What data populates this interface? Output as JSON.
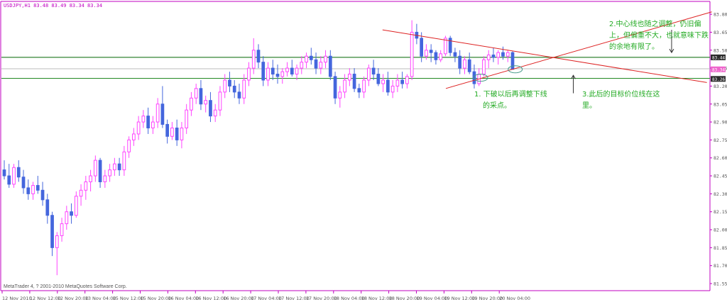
{
  "header": {
    "symbol_info": "USDJPY,H1  83.48 83.49 83.34 83.34",
    "footer": "MetaTrader 4, ? 2001-2010 MetaQuotes Software Corp."
  },
  "colors": {
    "background": "#ffffff",
    "axis": "#c000c0",
    "bull_candle": "#ff44ff",
    "bear_candle": "#4466dd",
    "hline_main": "#006600",
    "hline_lower": "#228822",
    "trendline": "#dd2222",
    "annotation_text": "#22aa22",
    "arrow": "#333333",
    "price_label_bg_dark": "#2b2b2b",
    "price_label_bg_pink": "#ee66cc"
  },
  "annotations": {
    "note2_line1": "2.中心线也随之调整，仍旧偏",
    "note2_line2": "上，但偏重不大，也就意味下跌",
    "note2_line3": "的余地有限了。",
    "note1_line1": "1. 下破以后再调整下线",
    "note1_line2": "的采点。",
    "note3_line1": "3.此后的目标价位线在这",
    "note3_line2": "里。"
  },
  "chart_data": {
    "type": "candlestick",
    "title": "USDJPY,H1",
    "ylim": [
      81.55,
      83.86
    ],
    "yticks": [
      "83.80",
      "83.65",
      "83.50",
      "83.35",
      "83.20",
      "83.05",
      "82.90",
      "82.75",
      "82.60",
      "82.45",
      "82.30",
      "82.15",
      "82.00",
      "81.85",
      "81.70",
      "81.55"
    ],
    "xticks": [
      "12 Nov 2010",
      "12 Nov 12:00",
      "12 Nov 20:00",
      "13 Nov 04:00",
      "15 Nov 12:00",
      "15 Nov 20:00",
      "16 Nov 04:00",
      "16 Nov 12:00",
      "16 Nov 20:00",
      "17 Nov 04:00",
      "17 Nov 12:00",
      "17 Nov 20:00",
      "18 Nov 04:00",
      "18 Nov 12:00",
      "18 Nov 20:00",
      "19 Nov 04:00",
      "19 Nov 12:00",
      "19 Nov 20:00",
      "20 Nov 04:00"
    ],
    "price_labels": [
      {
        "value": 83.44,
        "text": "83.44",
        "style": "dark"
      },
      {
        "value": 83.34,
        "text": "83.34",
        "style": "pink"
      },
      {
        "value": 83.26,
        "text": "83.26",
        "style": "dark"
      }
    ],
    "hlines": [
      {
        "value": 83.44,
        "color": "#006600"
      },
      {
        "value": 83.345,
        "color": "#bbbbbb"
      },
      {
        "value": 83.265,
        "color": "#228822"
      }
    ],
    "trendlines": [
      {
        "x1": 0.5262,
        "y1": 83.67,
        "x2": 0.9723,
        "y2": 83.23
      },
      {
        "x1": 0.6133,
        "y1": 83.18,
        "x2": 0.9791,
        "y2": 83.82
      }
    ],
    "markers": [
      {
        "type": "ellipse",
        "cx": 0.6611,
        "y": 83.27
      },
      {
        "type": "ellipse",
        "cx": 0.7087,
        "y": 83.34
      },
      {
        "type": "arrow-down",
        "x": 0.9238,
        "y1": 83.67,
        "y2": 83.48
      },
      {
        "type": "arrow-up",
        "x": 0.7886,
        "y1": 83.14,
        "y2": 83.29
      }
    ],
    "candles": [
      [
        82.5,
        82.58,
        82.42,
        82.45
      ],
      [
        82.45,
        82.55,
        82.35,
        82.38
      ],
      [
        82.38,
        82.55,
        82.35,
        82.52
      ],
      [
        82.52,
        82.58,
        82.4,
        82.44
      ],
      [
        82.44,
        82.5,
        82.3,
        82.35
      ],
      [
        82.35,
        82.42,
        82.25,
        82.3
      ],
      [
        82.3,
        82.4,
        82.25,
        82.37
      ],
      [
        82.37,
        82.45,
        82.3,
        82.33
      ],
      [
        82.33,
        82.4,
        82.2,
        82.25
      ],
      [
        82.25,
        82.3,
        82.05,
        82.12
      ],
      [
        82.12,
        82.15,
        81.78,
        81.85
      ],
      [
        81.85,
        81.98,
        81.62,
        81.95
      ],
      [
        81.95,
        82.1,
        81.9,
        82.05
      ],
      [
        82.05,
        82.2,
        82.0,
        82.15
      ],
      [
        82.15,
        82.22,
        82.05,
        82.12
      ],
      [
        82.12,
        82.32,
        82.1,
        82.28
      ],
      [
        82.28,
        82.38,
        82.2,
        82.33
      ],
      [
        82.33,
        82.45,
        82.25,
        82.4
      ],
      [
        82.4,
        82.5,
        82.32,
        82.45
      ],
      [
        82.45,
        82.62,
        82.4,
        82.58
      ],
      [
        82.58,
        82.6,
        82.35,
        82.4
      ],
      [
        82.4,
        82.5,
        82.35,
        82.45
      ],
      [
        82.45,
        82.55,
        82.4,
        82.5
      ],
      [
        82.5,
        82.6,
        82.45,
        82.55
      ],
      [
        82.55,
        82.6,
        82.45,
        82.5
      ],
      [
        82.5,
        82.7,
        82.45,
        82.65
      ],
      [
        82.65,
        82.78,
        82.6,
        82.75
      ],
      [
        82.75,
        82.85,
        82.7,
        82.8
      ],
      [
        82.8,
        82.95,
        82.75,
        82.9
      ],
      [
        82.9,
        83.0,
        82.85,
        82.95
      ],
      [
        82.95,
        83.02,
        82.8,
        82.85
      ],
      [
        82.85,
        82.95,
        82.8,
        82.9
      ],
      [
        82.9,
        83.1,
        82.85,
        83.05
      ],
      [
        83.05,
        83.2,
        82.85,
        82.88
      ],
      [
        82.88,
        82.92,
        82.72,
        82.78
      ],
      [
        82.78,
        82.9,
        82.75,
        82.85
      ],
      [
        82.85,
        82.92,
        82.7,
        82.75
      ],
      [
        82.75,
        82.9,
        82.68,
        82.85
      ],
      [
        82.85,
        83.05,
        82.8,
        83.0
      ],
      [
        83.0,
        83.15,
        82.95,
        83.1
      ],
      [
        83.1,
        83.22,
        83.05,
        83.18
      ],
      [
        83.18,
        83.25,
        83.0,
        83.05
      ],
      [
        83.05,
        83.12,
        82.98,
        83.08
      ],
      [
        83.08,
        83.15,
        82.9,
        82.95
      ],
      [
        82.95,
        83.05,
        82.9,
        83.0
      ],
      [
        83.0,
        83.2,
        82.95,
        83.15
      ],
      [
        83.15,
        83.3,
        83.1,
        83.25
      ],
      [
        83.25,
        83.32,
        83.15,
        83.2
      ],
      [
        83.2,
        83.25,
        83.1,
        83.15
      ],
      [
        83.15,
        83.22,
        83.05,
        83.1
      ],
      [
        83.1,
        83.3,
        83.05,
        83.25
      ],
      [
        83.25,
        83.4,
        83.2,
        83.35
      ],
      [
        83.35,
        83.6,
        83.3,
        83.5
      ],
      [
        83.5,
        83.55,
        83.35,
        83.4
      ],
      [
        83.4,
        83.45,
        83.2,
        83.25
      ],
      [
        83.25,
        83.4,
        83.2,
        83.35
      ],
      [
        83.35,
        83.42,
        83.25,
        83.3
      ],
      [
        83.3,
        83.38,
        83.22,
        83.28
      ],
      [
        83.28,
        83.35,
        83.22,
        83.32
      ],
      [
        83.32,
        83.4,
        83.28,
        83.35
      ],
      [
        83.35,
        83.42,
        83.28,
        83.3
      ],
      [
        83.3,
        83.38,
        83.25,
        83.35
      ],
      [
        83.35,
        83.45,
        83.3,
        83.4
      ],
      [
        83.4,
        83.48,
        83.35,
        83.45
      ],
      [
        83.45,
        83.52,
        83.38,
        83.42
      ],
      [
        83.42,
        83.48,
        83.3,
        83.35
      ],
      [
        83.35,
        83.45,
        83.3,
        83.4
      ],
      [
        83.4,
        83.5,
        83.35,
        83.45
      ],
      [
        83.45,
        83.5,
        83.25,
        83.28
      ],
      [
        83.28,
        83.32,
        83.05,
        83.1
      ],
      [
        83.1,
        83.2,
        83.02,
        83.15
      ],
      [
        83.15,
        83.3,
        83.1,
        83.25
      ],
      [
        83.25,
        83.35,
        83.2,
        83.3
      ],
      [
        83.3,
        83.35,
        83.15,
        83.18
      ],
      [
        83.18,
        83.22,
        83.1,
        83.15
      ],
      [
        83.15,
        83.28,
        83.1,
        83.25
      ],
      [
        83.25,
        83.38,
        83.2,
        83.35
      ],
      [
        83.35,
        83.42,
        83.25,
        83.3
      ],
      [
        83.3,
        83.35,
        83.2,
        83.22
      ],
      [
        83.22,
        83.3,
        83.15,
        83.25
      ],
      [
        83.25,
        83.32,
        83.12,
        83.15
      ],
      [
        83.15,
        83.25,
        83.1,
        83.2
      ],
      [
        83.2,
        83.3,
        83.15,
        83.25
      ],
      [
        83.25,
        83.32,
        83.18,
        83.22
      ],
      [
        83.22,
        83.3,
        83.18,
        83.28
      ],
      [
        83.28,
        83.75,
        83.25,
        83.65
      ],
      [
        83.65,
        83.72,
        83.55,
        83.6
      ],
      [
        83.6,
        83.65,
        83.4,
        83.45
      ],
      [
        83.45,
        83.55,
        83.42,
        83.5
      ],
      [
        83.5,
        83.55,
        83.4,
        83.48
      ],
      [
        83.48,
        83.5,
        83.38,
        83.42
      ],
      [
        83.42,
        83.5,
        83.4,
        83.47
      ],
      [
        83.47,
        83.62,
        83.45,
        83.6
      ],
      [
        83.6,
        83.62,
        83.45,
        83.48
      ],
      [
        83.48,
        83.52,
        83.4,
        83.45
      ],
      [
        83.45,
        83.5,
        83.3,
        83.35
      ],
      [
        83.35,
        83.45,
        83.3,
        83.42
      ],
      [
        83.42,
        83.48,
        83.3,
        83.32
      ],
      [
        83.32,
        83.38,
        83.18,
        83.22
      ],
      [
        83.22,
        83.35,
        83.2,
        83.3
      ],
      [
        83.3,
        83.45,
        83.28,
        83.42
      ],
      [
        83.42,
        83.5,
        83.35,
        83.46
      ],
      [
        83.46,
        83.52,
        83.4,
        83.44
      ],
      [
        83.44,
        83.5,
        83.38,
        83.48
      ],
      [
        83.48,
        83.53,
        83.42,
        83.45
      ],
      [
        83.45,
        83.5,
        83.4,
        83.48
      ],
      [
        83.48,
        83.49,
        83.34,
        83.34
      ]
    ]
  }
}
